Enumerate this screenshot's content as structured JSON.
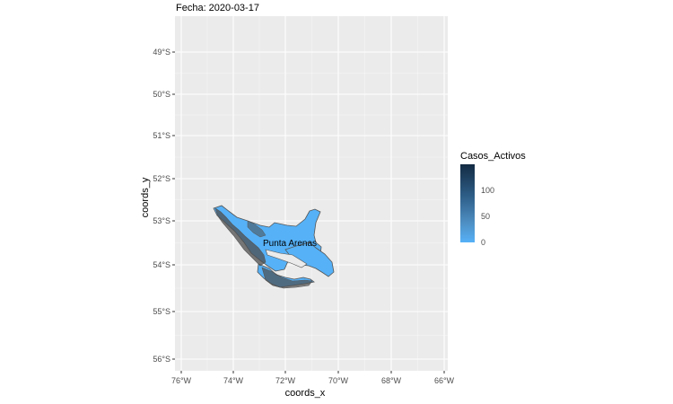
{
  "map": {
    "title": "Fecha: 2020-03-17",
    "xlabel": "coords_x",
    "ylabel": "coords_y",
    "x_ticks": [
      "76°W",
      "74°W",
      "72°W",
      "70°W",
      "68°W",
      "66°W"
    ],
    "y_ticks": [
      "49°S",
      "50°S",
      "51°S",
      "52°S",
      "53°S",
      "54°S",
      "55°S",
      "56°S"
    ],
    "region_label": "Punta Arenas",
    "background_color": "#ebebeb",
    "grid_color": "#ffffff",
    "fill_low": "#56b1f7",
    "fill_high": "#132b43",
    "border_color": "#555555",
    "active_cases": 0
  },
  "legend": {
    "title": "Casos_Activos",
    "labels": [
      "100",
      "50",
      "0"
    ]
  }
}
